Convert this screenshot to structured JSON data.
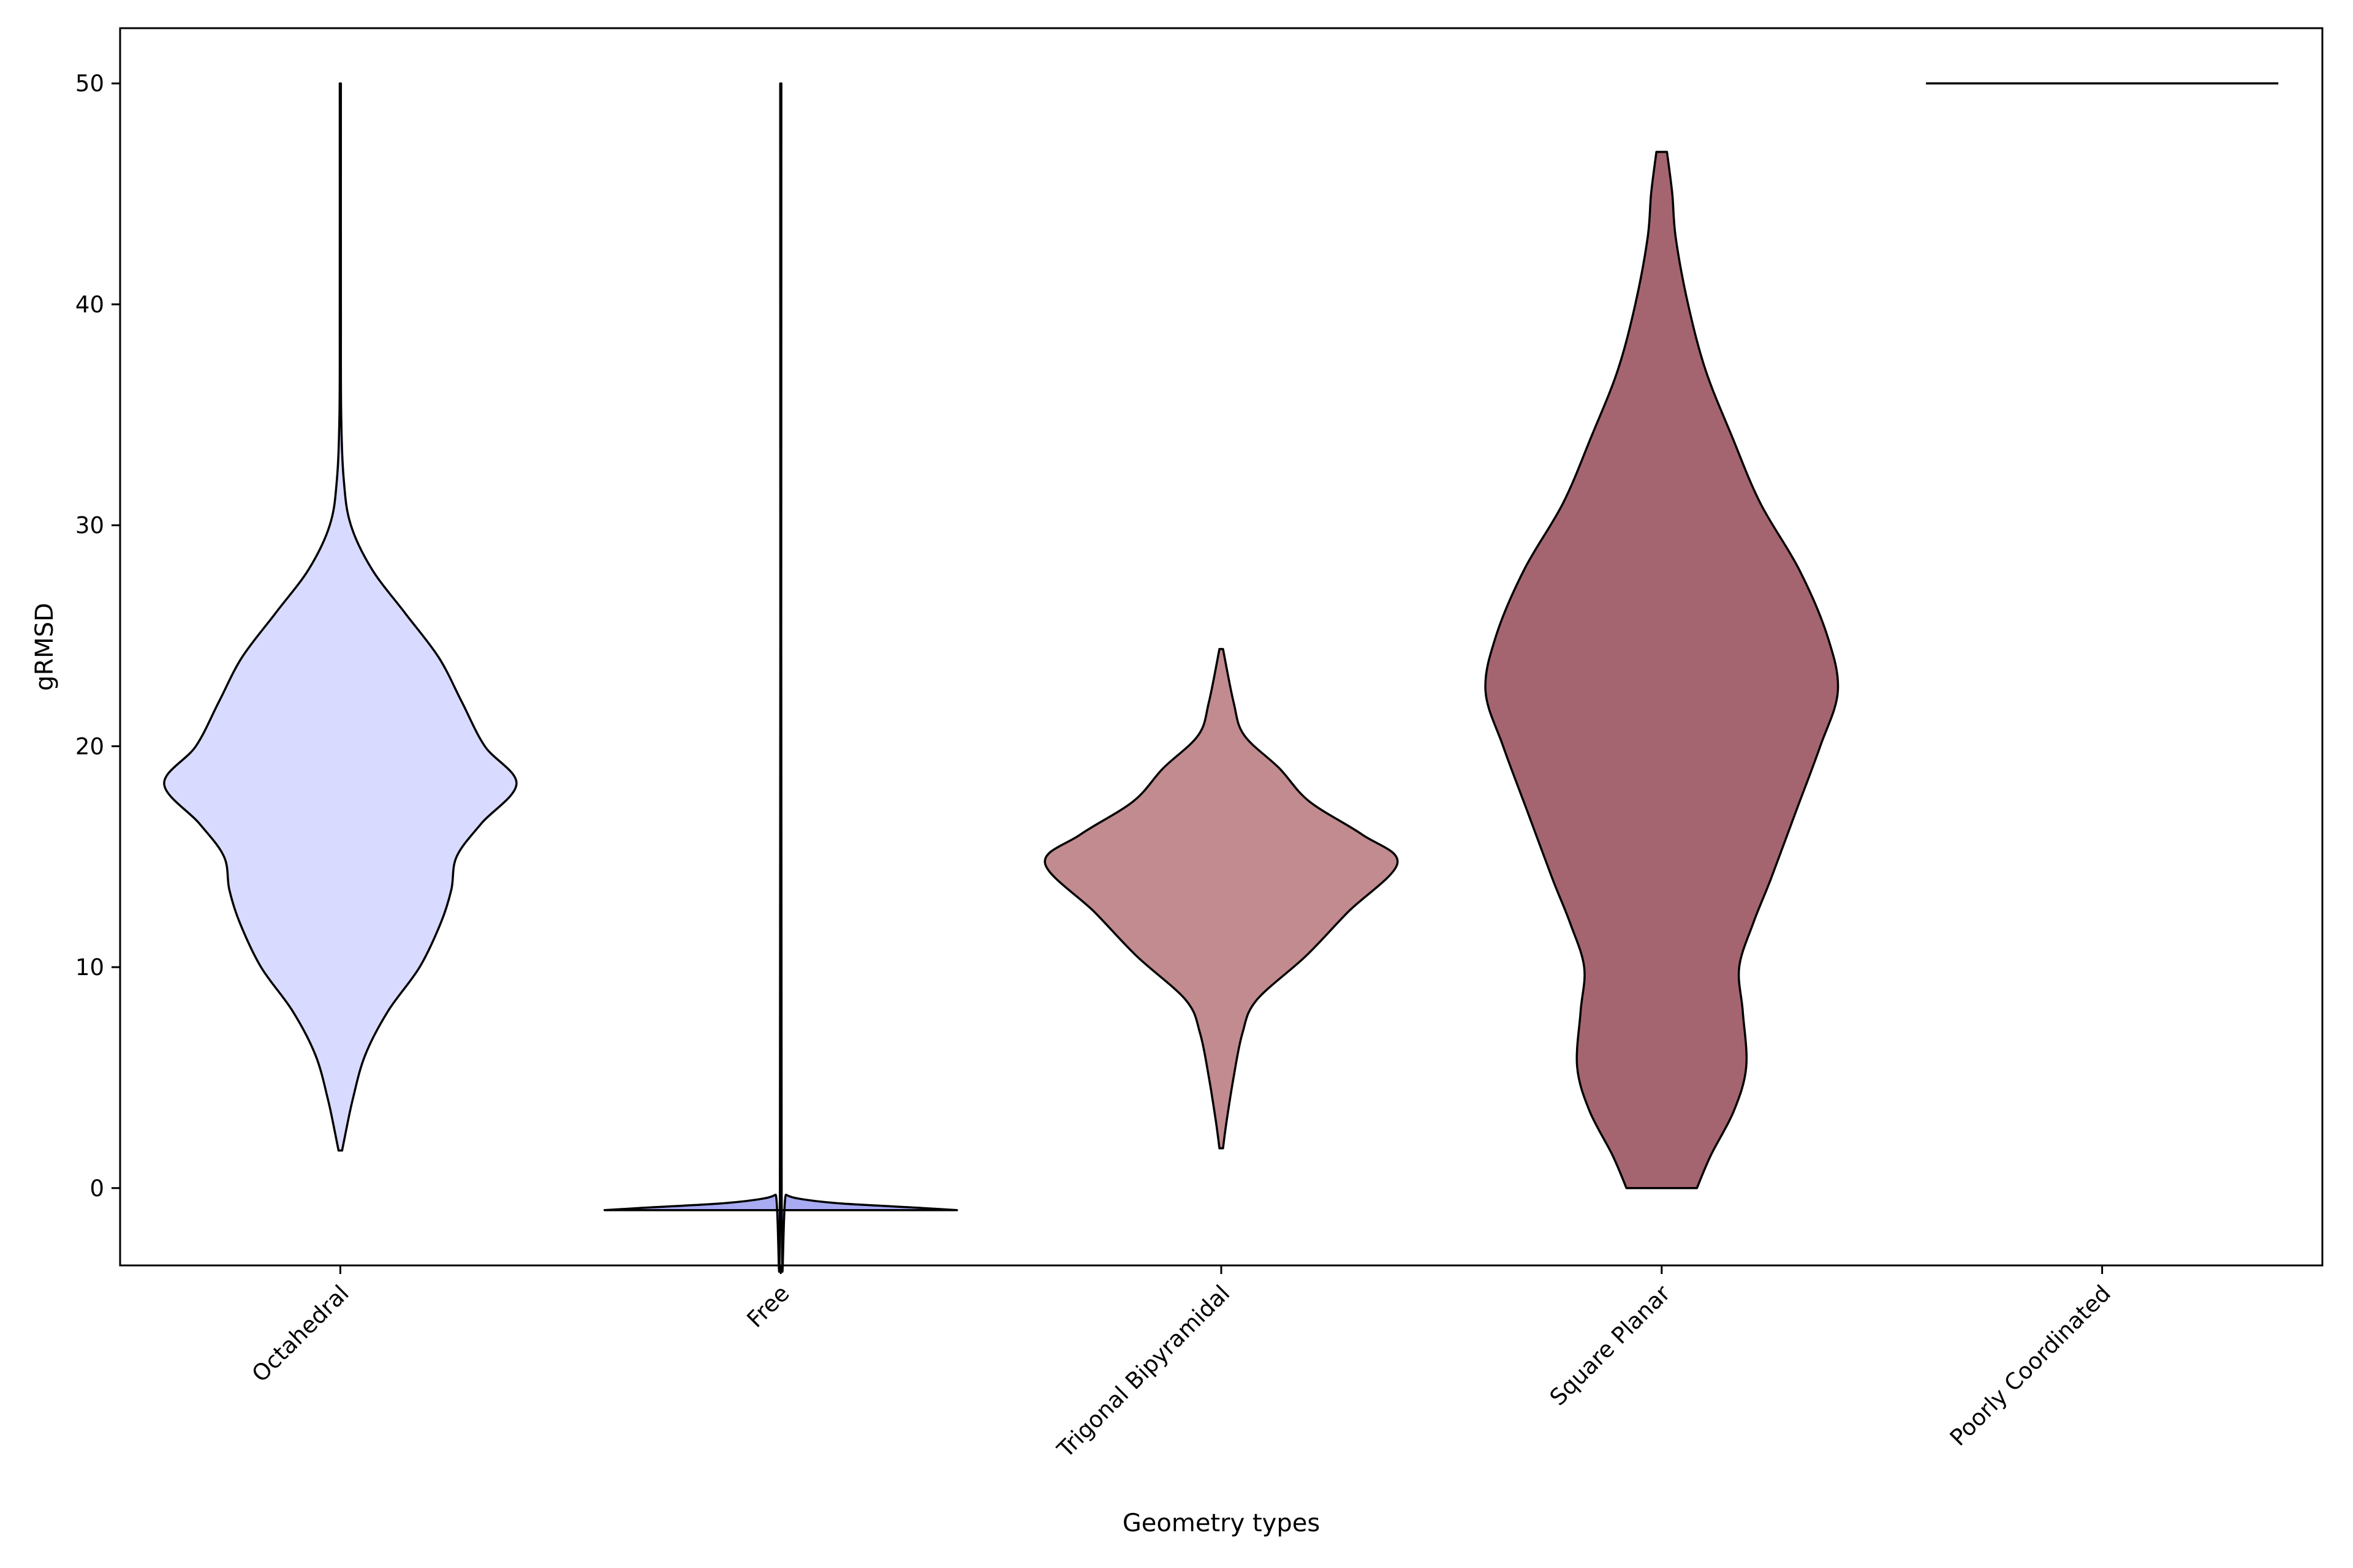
{
  "chart_data": {
    "type": "violin",
    "xlabel": "Geometry types",
    "ylabel": "gRMSD",
    "ylim": [
      -3.5,
      52.5
    ],
    "yticks": [
      0,
      10,
      20,
      30,
      40,
      50
    ],
    "grid": false,
    "categories": [
      "Octahedral",
      "Free",
      "Trigonal Bipyramidal",
      "Square Planar",
      "Poorly Coordinated"
    ],
    "violins": [
      {
        "category": "Octahedral",
        "color": "#d8dbff",
        "min": 1.7,
        "max": 50,
        "profile": [
          [
            1.7,
            0.01
          ],
          [
            2.5,
            0.03
          ],
          [
            4,
            0.07
          ],
          [
            6,
            0.14
          ],
          [
            8,
            0.27
          ],
          [
            10,
            0.45
          ],
          [
            12,
            0.57
          ],
          [
            13.5,
            0.63
          ],
          [
            15,
            0.66
          ],
          [
            16.5,
            0.8
          ],
          [
            18.3,
            1.0
          ],
          [
            20,
            0.82
          ],
          [
            22,
            0.69
          ],
          [
            24,
            0.56
          ],
          [
            26,
            0.37
          ],
          [
            28,
            0.18
          ],
          [
            30,
            0.06
          ],
          [
            32,
            0.02
          ],
          [
            35,
            0.005
          ],
          [
            40,
            0.003
          ],
          [
            50,
            0.003
          ]
        ]
      },
      {
        "category": "Free",
        "color": "#a8abf2",
        "min": -1,
        "max": 50,
        "profile": [
          [
            -1,
            1.0
          ],
          [
            -0.9,
            0.8
          ],
          [
            -0.7,
            0.35
          ],
          [
            -0.5,
            0.12
          ],
          [
            -0.3,
            0.03
          ],
          [
            0,
            0.005
          ],
          [
            50,
            0.003
          ]
        ]
      },
      {
        "category": "Trigonal Bipyramidal",
        "color": "#c18b8f",
        "min": 1.8,
        "max": 24.4,
        "profile": [
          [
            1.8,
            0.01
          ],
          [
            3,
            0.03
          ],
          [
            5,
            0.07
          ],
          [
            7,
            0.12
          ],
          [
            8.5,
            0.2
          ],
          [
            10.5,
            0.48
          ],
          [
            12.5,
            0.72
          ],
          [
            14.7,
            1.0
          ],
          [
            16,
            0.8
          ],
          [
            17.5,
            0.5
          ],
          [
            19,
            0.33
          ],
          [
            20.5,
            0.13
          ],
          [
            22,
            0.07
          ],
          [
            24.4,
            0.01
          ]
        ]
      },
      {
        "category": "Square Planar",
        "color": "#a56570",
        "min": 0,
        "max": 46.9,
        "profile": [
          [
            0,
            0.2
          ],
          [
            1.5,
            0.28
          ],
          [
            3.5,
            0.41
          ],
          [
            5.5,
            0.48
          ],
          [
            8,
            0.46
          ],
          [
            10,
            0.44
          ],
          [
            12,
            0.52
          ],
          [
            14,
            0.62
          ],
          [
            17,
            0.76
          ],
          [
            20,
            0.9
          ],
          [
            22.5,
            1.0
          ],
          [
            25,
            0.94
          ],
          [
            28,
            0.78
          ],
          [
            31,
            0.56
          ],
          [
            34,
            0.4
          ],
          [
            37,
            0.25
          ],
          [
            40,
            0.15
          ],
          [
            43,
            0.08
          ],
          [
            45,
            0.06
          ],
          [
            46.9,
            0.03
          ]
        ]
      },
      {
        "category": "Poorly Coordinated",
        "color": "#000000",
        "min": 50,
        "max": 50,
        "profile": [
          [
            50,
            1.0
          ]
        ]
      }
    ]
  }
}
